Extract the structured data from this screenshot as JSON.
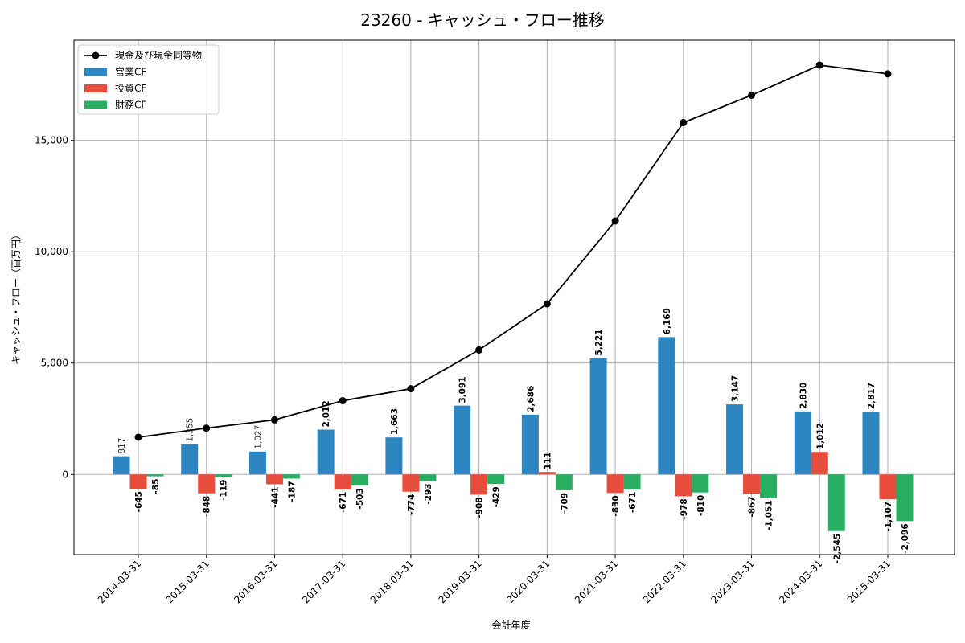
{
  "chart_data": {
    "type": "bar",
    "title": "23260 - キャッシュ・フロー推移",
    "xlabel": "会計年度",
    "ylabel": "キャッシュ・フロー（百万円）",
    "ylim": [
      -3600,
      19500
    ],
    "yticks": [
      0,
      5000,
      10000,
      15000
    ],
    "ytick_labels": [
      "0",
      "5,000",
      "10,000",
      "15,000"
    ],
    "grid": true,
    "legend_position": "top-left",
    "categories": [
      "2014-03-31",
      "2015-03-31",
      "2016-03-31",
      "2017-03-31",
      "2018-03-31",
      "2019-03-31",
      "2020-03-31",
      "2021-03-31",
      "2022-03-31",
      "2023-03-31",
      "2024-03-31",
      "2025-03-31"
    ],
    "series": [
      {
        "name": "営業CF",
        "kind": "bar",
        "color": "#2e86c1",
        "values": [
          817,
          1355,
          1027,
          2012,
          1663,
          3091,
          2686,
          5221,
          6169,
          3147,
          2830,
          2817
        ],
        "labels": [
          "817",
          "1,355",
          "1,027",
          "2,012",
          "1,663",
          "3,091",
          "2,686",
          "5,221",
          "6,169",
          "3,147",
          "2,830",
          "2,817"
        ]
      },
      {
        "name": "投資CF",
        "kind": "bar",
        "color": "#e74c3c",
        "values": [
          -645,
          -848,
          -441,
          -671,
          -774,
          -908,
          111,
          -830,
          -978,
          -867,
          1012,
          -1107
        ],
        "labels": [
          "-645",
          "-848",
          "-441",
          "-671",
          "-774",
          "-908",
          "111",
          "-830",
          "-978",
          "-867",
          "1,012",
          "-1,107"
        ]
      },
      {
        "name": "財務CF",
        "kind": "bar",
        "color": "#27ae60",
        "values": [
          -85,
          -119,
          -187,
          -503,
          -293,
          -429,
          -709,
          -671,
          -810,
          -1051,
          -2545,
          -2096
        ],
        "labels": [
          "-85",
          "-119",
          "-187",
          "-503",
          "-293",
          "-429",
          "-709",
          "-671",
          "-810",
          "-1,051",
          "-2,545",
          "-2,096"
        ]
      },
      {
        "name": "現金及び現金同等物",
        "kind": "line",
        "color": "#000000",
        "values": [
          1670,
          2080,
          2450,
          3310,
          3850,
          5590,
          7660,
          11380,
          15800,
          17030,
          18380,
          17990
        ]
      }
    ]
  }
}
